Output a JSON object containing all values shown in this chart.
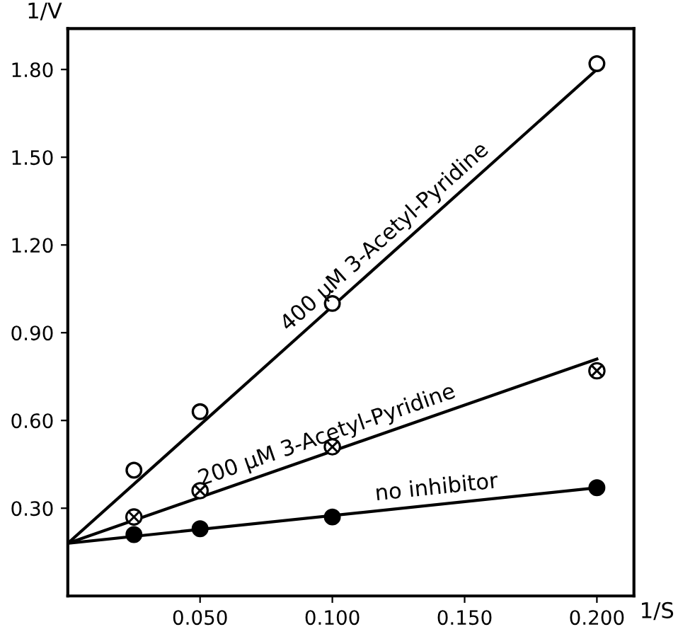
{
  "chart_data": {
    "type": "scatter",
    "xlabel": "1/S",
    "ylabel": "1/V",
    "xlim": [
      0,
      0.214
    ],
    "ylim": [
      0,
      1.94
    ],
    "xticks": [
      {
        "value": 0.05,
        "label": "0.050"
      },
      {
        "value": 0.1,
        "label": "0.100"
      },
      {
        "value": 0.15,
        "label": "0.150"
      },
      {
        "value": 0.2,
        "label": "0.200"
      }
    ],
    "yticks": [
      {
        "value": 0.3,
        "label": "0.30"
      },
      {
        "value": 0.6,
        "label": "0.60"
      },
      {
        "value": 0.9,
        "label": "0.90"
      },
      {
        "value": 1.2,
        "label": "1.20"
      },
      {
        "value": 1.5,
        "label": "1.50"
      },
      {
        "value": 1.8,
        "label": "1.80"
      }
    ],
    "grid": false,
    "legend": false,
    "series": [
      {
        "color": "#ffffff",
        "marker": "circle",
        "x": [
          0.025,
          0.05,
          0.1,
          0.2
        ],
        "values": [
          0.43,
          0.63,
          1.0,
          1.82
        ]
      },
      {
        "color": "#000000",
        "marker": "cross",
        "x": [
          0.025,
          0.05,
          0.1,
          0.2
        ],
        "values": [
          0.27,
          0.36,
          0.51,
          0.77
        ]
      },
      {
        "color": "#000000",
        "marker": "circle",
        "x": [
          0.025,
          0.05,
          0.1,
          0.2
        ],
        "values": [
          0.21,
          0.23,
          0.27,
          0.37
        ]
      },
      {
        "type": "line",
        "name": "400 μM 3-Acetyl-Pyridine",
        "color": "#000000",
        "line_style": "solid",
        "x": [
          0,
          0.2
        ],
        "values": [
          0.18,
          1.8
        ]
      },
      {
        "type": "line",
        "name": "200 μM 3-Acetyl-Pyridine",
        "color": "#000000",
        "line_style": "solid",
        "x": [
          0,
          0.2
        ],
        "values": [
          0.18,
          0.81
        ]
      },
      {
        "type": "line",
        "name": "no inhibitor",
        "color": "#000000",
        "line_style": "solid",
        "x": [
          0,
          0.2
        ],
        "values": [
          0.18,
          0.37
        ]
      }
    ]
  }
}
